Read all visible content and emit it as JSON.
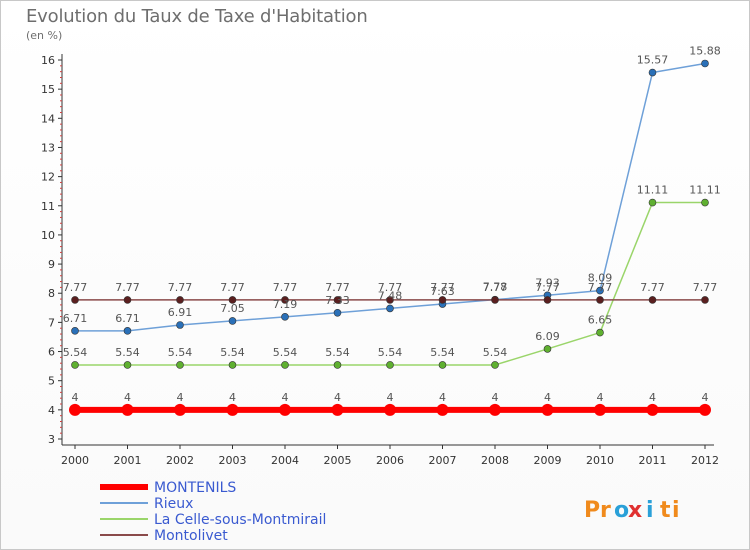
{
  "chart_data": {
    "type": "line",
    "title": "Evolution du Taux de Taxe d'Habitation",
    "subtitle": "(en %)",
    "xlabel": "",
    "ylabel": "",
    "x": [
      "2000",
      "2001",
      "2002",
      "2003",
      "2004",
      "2005",
      "2006",
      "2007",
      "2008",
      "2009",
      "2010",
      "2011",
      "2012"
    ],
    "ylim": [
      3,
      16
    ],
    "yticks": [
      "3",
      "4",
      "5",
      "6",
      "7",
      "8",
      "9",
      "10",
      "11",
      "12",
      "13",
      "14",
      "15",
      "16"
    ],
    "grid": false,
    "legend": "bottom-left",
    "series": [
      {
        "name": "MONTENILS",
        "color": "#ff0000",
        "values": [
          4,
          4,
          4,
          4,
          4,
          4,
          4,
          4,
          4,
          4,
          4,
          4,
          4
        ],
        "labels": [
          "4",
          "4",
          "4",
          "4",
          "4",
          "4",
          "4",
          "4",
          "4",
          "4",
          "4",
          "4",
          "4"
        ]
      },
      {
        "name": "Rieux",
        "color": "#6ea0d8",
        "values": [
          6.71,
          6.71,
          6.91,
          7.05,
          7.19,
          7.33,
          7.48,
          7.63,
          7.78,
          7.93,
          8.09,
          15.57,
          15.88
        ],
        "labels": [
          "6.71",
          "6.71",
          "6.91",
          "7.05",
          "7.19",
          "7.33",
          "7.48",
          "7.63",
          "7.78",
          "7.93",
          "8.09",
          "15.57",
          "15.88"
        ]
      },
      {
        "name": "La Celle-sous-Montmirail",
        "color": "#9ad56a",
        "values": [
          5.54,
          5.54,
          5.54,
          5.54,
          5.54,
          5.54,
          5.54,
          5.54,
          5.54,
          6.09,
          6.65,
          11.11,
          11.11
        ],
        "labels": [
          "5.54",
          "5.54",
          "5.54",
          "5.54",
          "5.54",
          "5.54",
          "5.54",
          "5.54",
          "5.54",
          "6.09",
          "6.65",
          "11.11",
          "11.11"
        ]
      },
      {
        "name": "Montolivet",
        "color": "#8a4a4a",
        "values": [
          7.77,
          7.77,
          7.77,
          7.77,
          7.77,
          7.77,
          7.77,
          7.77,
          7.77,
          7.77,
          7.77,
          7.77,
          7.77
        ],
        "labels": [
          "7.77",
          "7.77",
          "7.77",
          "7.77",
          "7.77",
          "7.77",
          "7.77",
          "7.77",
          "7.77",
          "7.77",
          "7.77",
          "7.77",
          "7.77"
        ]
      }
    ]
  },
  "logo": {
    "text": "Proxiti"
  }
}
